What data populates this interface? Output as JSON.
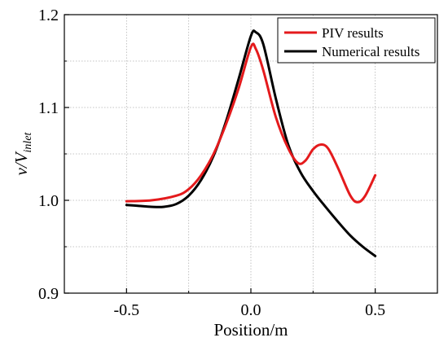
{
  "chart_data": {
    "type": "line",
    "title": "",
    "xlabel": "Position/m",
    "ylabel": {
      "main": "v/V",
      "subscript": "inlet"
    },
    "xlim": [
      -0.75,
      0.75
    ],
    "ylim": [
      0.9,
      1.2
    ],
    "xticks": [
      -0.5,
      0.0,
      0.5
    ],
    "xtick_labels": [
      "-0.5",
      "0.0",
      "0.5"
    ],
    "yticks": [
      0.9,
      1.0,
      1.1,
      1.2
    ],
    "ytick_labels": [
      "0.9",
      "1.0",
      "1.1",
      "1.2"
    ],
    "grid": true,
    "legend_position": "top-right",
    "series": [
      {
        "name": "PIV results",
        "color": "#e41a1c",
        "x": [
          -0.5,
          -0.4,
          -0.3,
          -0.25,
          -0.2,
          -0.15,
          -0.1,
          -0.05,
          0.0,
          0.02,
          0.05,
          0.1,
          0.15,
          0.19,
          0.22,
          0.25,
          0.28,
          0.31,
          0.35,
          0.4,
          0.43,
          0.46,
          0.5
        ],
        "y": [
          0.999,
          1.0,
          1.005,
          1.012,
          1.027,
          1.05,
          1.082,
          1.12,
          1.165,
          1.163,
          1.14,
          1.09,
          1.056,
          1.04,
          1.043,
          1.055,
          1.06,
          1.056,
          1.035,
          1.005,
          0.998,
          1.005,
          1.027
        ]
      },
      {
        "name": "Numerical results",
        "color": "#000000",
        "x": [
          -0.5,
          -0.45,
          -0.4,
          -0.35,
          -0.3,
          -0.25,
          -0.2,
          -0.15,
          -0.1,
          -0.05,
          0.0,
          0.02,
          0.05,
          0.1,
          0.15,
          0.2,
          0.25,
          0.3,
          0.35,
          0.4,
          0.45,
          0.5
        ],
        "y": [
          0.995,
          0.994,
          0.993,
          0.993,
          0.996,
          1.005,
          1.022,
          1.048,
          1.085,
          1.13,
          1.177,
          1.181,
          1.168,
          1.11,
          1.06,
          1.03,
          1.01,
          0.993,
          0.977,
          0.962,
          0.95,
          0.94
        ]
      }
    ]
  }
}
